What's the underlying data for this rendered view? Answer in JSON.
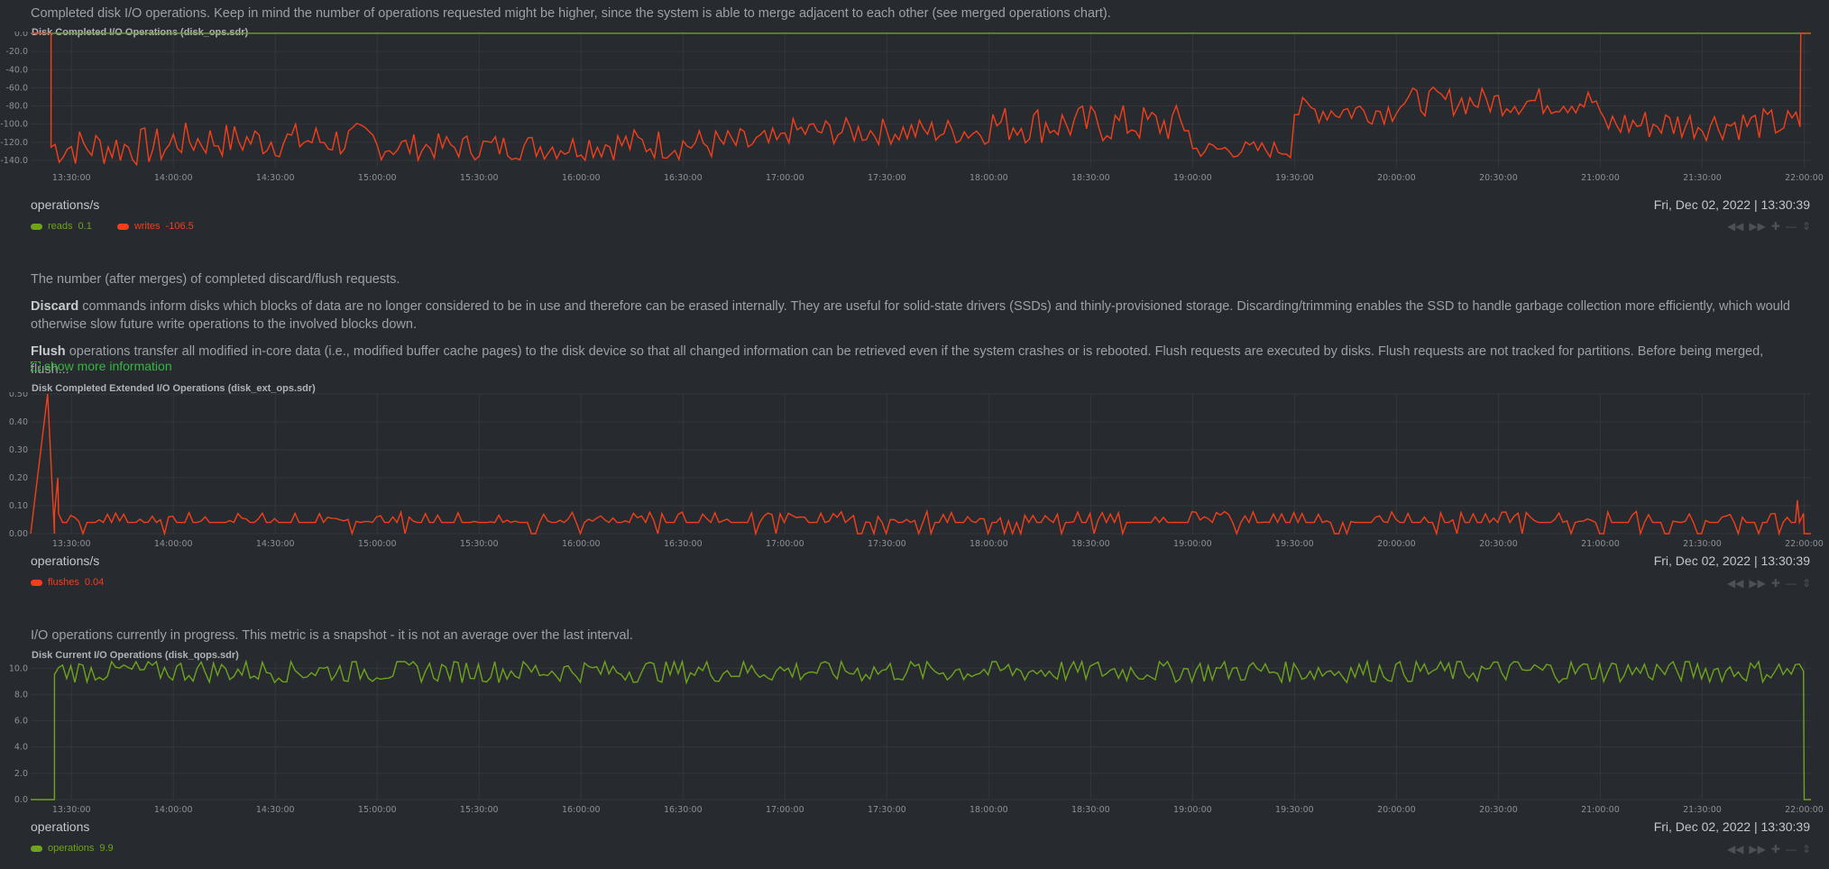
{
  "colors": {
    "reads": "#6ea31b",
    "writes": "#f23f1a",
    "flushes": "#f23f1a",
    "operations": "#6ea31b",
    "grid": "#33373c"
  },
  "x_tick_labels": [
    "13:30:00",
    "14:00:00",
    "14:30:00",
    "15:00:00",
    "15:30:00",
    "16:00:00",
    "16:30:00",
    "17:00:00",
    "17:30:00",
    "18:00:00",
    "18:30:00",
    "19:00:00",
    "19:30:00",
    "20:00:00",
    "20:30:00",
    "21:00:00",
    "21:30:00",
    "22:00:00"
  ],
  "toolbox_icons": [
    "pan-left-icon",
    "pan-right-icon",
    "zoom-in-icon",
    "zoom-out-icon",
    "resize-icon"
  ],
  "charts": [
    {
      "description": "Completed disk I/O operations. Keep in mind the number of operations requested might be higher, since the system is able to merge adjacent to each other (see merged operations chart).",
      "title": "Disk Completed I/O Operations (disk_ops.sdr)",
      "units": "operations/s",
      "datetime": "Fri, Dec 02, 2022 | 13:30:39",
      "legend": [
        {
          "name": "reads",
          "value": "0.1"
        },
        {
          "name": "writes",
          "value": "-106.5"
        }
      ]
    },
    {
      "description_line1": "The number (after merges) of completed discard/flush requests.",
      "discard_label": "Discard",
      "discard_text": " commands inform disks which blocks of data are no longer considered to be in use and therefore can be erased internally. They are useful for solid-state drivers (SSDs) and thinly-provisioned storage. Discarding/trimming enables the SSD to handle garbage collection more efficiently, which would otherwise slow future write operations to the involved blocks down.",
      "flush_label": "Flush",
      "flush_text": " operations transfer all modified in-core data (i.e., modified buffer cache pages) to the disk device so that all changed information can be retrieved even if the system crashes or is rebooted. Flush requests are executed by disks. Flush requests are not tracked for partitions. Before being merged, flush...",
      "more_info": "show more information",
      "title": "Disk Completed Extended I/O Operations (disk_ext_ops.sdr)",
      "units": "operations/s",
      "datetime": "Fri, Dec 02, 2022 | 13:30:39",
      "legend": [
        {
          "name": "flushes",
          "value": "0.04"
        }
      ]
    },
    {
      "description": "I/O operations currently in progress. This metric is a snapshot - it is not an average over the last interval.",
      "title": "Disk Current I/O Operations (disk_qops.sdr)",
      "units": "operations",
      "datetime": "Fri, Dec 02, 2022 | 13:30:39",
      "legend": [
        {
          "name": "operations",
          "value": "9.9"
        }
      ]
    }
  ],
  "chart_data": [
    {
      "type": "line",
      "title": "Disk Completed I/O Operations (disk_ops.sdr)",
      "ylabel": "operations/s",
      "x_start": "13:18:00",
      "x_end": "22:02:00",
      "ylim": [
        -148,
        2
      ],
      "yticks": [
        0,
        -20,
        -40,
        -60,
        -80,
        -100,
        -120,
        -140
      ],
      "series": [
        {
          "name": "reads",
          "segments": [
            {
              "from": "13:18",
              "to": "22:02",
              "value": 0.1
            }
          ]
        },
        {
          "name": "writes",
          "segments": [
            {
              "from": "13:18",
              "to": "13:24",
              "value": 0
            },
            {
              "from": "13:24",
              "to": "14:00",
              "value": -125,
              "jitter": 22
            },
            {
              "from": "14:00",
              "to": "15:00",
              "value": -118,
              "jitter": 20
            },
            {
              "from": "15:00",
              "to": "16:00",
              "value": -125,
              "jitter": 15
            },
            {
              "from": "16:00",
              "to": "17:00",
              "value": -122,
              "jitter": 18
            },
            {
              "from": "17:00",
              "to": "18:00",
              "value": -108,
              "jitter": 15
            },
            {
              "from": "18:00",
              "to": "19:00",
              "value": -100,
              "jitter": 22
            },
            {
              "from": "19:00",
              "to": "19:30",
              "value": -128,
              "jitter": 10
            },
            {
              "from": "19:30",
              "to": "20:00",
              "value": -85,
              "jitter": 15
            },
            {
              "from": "20:00",
              "to": "21:00",
              "value": -75,
              "jitter": 16
            },
            {
              "from": "21:00",
              "to": "21:59",
              "value": -100,
              "jitter": 18
            },
            {
              "from": "21:59",
              "to": "22:02",
              "value": 0
            }
          ]
        }
      ]
    },
    {
      "type": "line",
      "title": "Disk Completed Extended I/O Operations (disk_ext_ops.sdr)",
      "ylabel": "operations/s",
      "x_start": "13:18:00",
      "x_end": "22:02:00",
      "ylim": [
        0,
        0.5
      ],
      "yticks": [
        0,
        0.1,
        0.2,
        0.3,
        0.4,
        0.5
      ],
      "series": [
        {
          "name": "flushes",
          "segments": [
            {
              "from": "13:18",
              "to": "13:25",
              "value": 0
            },
            {
              "from": "13:25",
              "to": "22:00",
              "value": 0.04,
              "spike_max": 0.12
            },
            {
              "from": "22:00",
              "to": "22:02",
              "value": 0
            }
          ],
          "peaks": [
            {
              "x": "13:23",
              "y": 0.5
            },
            {
              "x": "13:26",
              "y": 0.2
            },
            {
              "x": "21:58",
              "y": 0.12
            }
          ]
        }
      ]
    },
    {
      "type": "line",
      "title": "Disk Current I/O Operations (disk_qops.sdr)",
      "ylabel": "operations",
      "x_start": "13:18:00",
      "x_end": "22:02:00",
      "ylim": [
        0,
        10.5
      ],
      "yticks": [
        0,
        2,
        4,
        6,
        8,
        10
      ],
      "series": [
        {
          "name": "operations",
          "segments": [
            {
              "from": "13:18",
              "to": "13:25",
              "value": 0
            },
            {
              "from": "13:25",
              "to": "22:00",
              "value": 9.8,
              "jitter": 0.9
            },
            {
              "from": "22:00",
              "to": "22:02",
              "value": 0
            }
          ]
        }
      ]
    }
  ]
}
